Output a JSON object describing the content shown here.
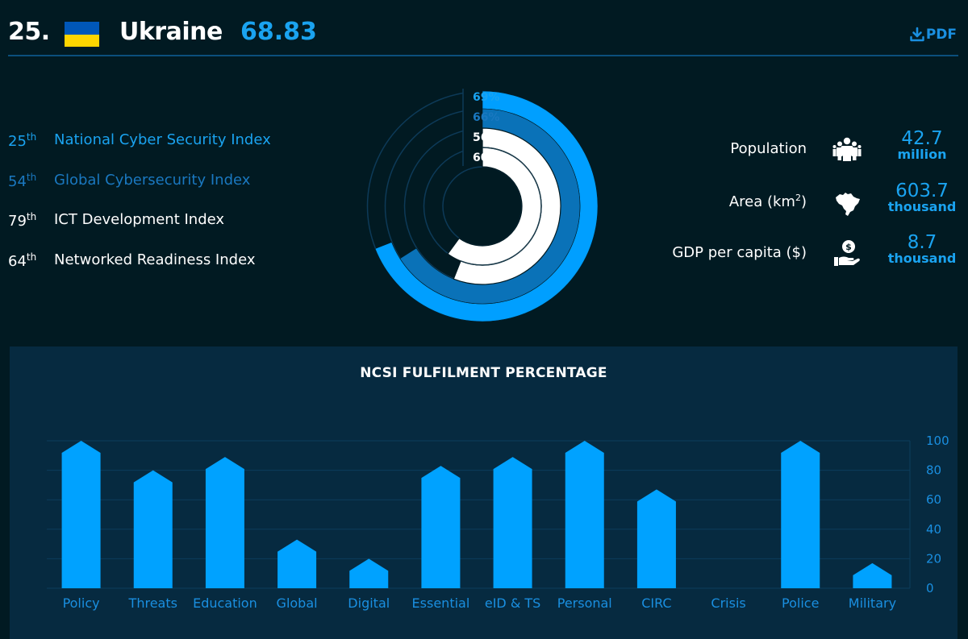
{
  "header": {
    "rank": "25.",
    "country": "Ukraine",
    "score": "68.83",
    "flag": {
      "top_color": "#0057b8",
      "bottom_color": "#ffd500"
    },
    "pdf_label": "PDF",
    "pdf_icon": "download-icon"
  },
  "indices": [
    {
      "rank": "25",
      "suffix": "th",
      "label": "National Cyber Security Index",
      "color": "#1aa3f0"
    },
    {
      "rank": "54",
      "suffix": "th",
      "label": "Global Cybersecurity Index",
      "color": "#1a78c0"
    },
    {
      "rank": "79",
      "suffix": "th",
      "label": "ICT Development Index",
      "color": "#ffffff"
    },
    {
      "rank": "64",
      "suffix": "th",
      "label": "Networked Readiness Index",
      "color": "#ffffff"
    }
  ],
  "rings": [
    {
      "label": "69%",
      "value": 69,
      "color": "#009fff",
      "label_color": "#1aa3f0"
    },
    {
      "label": "66%",
      "value": 66,
      "color": "#0a72b8",
      "label_color": "#1a78c0"
    },
    {
      "label": "56%",
      "value": 56,
      "color": "#ffffff",
      "label_color": "#ffffff"
    },
    {
      "label": "60%",
      "value": 60,
      "color": "#ffffff",
      "label_color": "#ffffff"
    }
  ],
  "stats": [
    {
      "label": "Population",
      "icon": "people-icon",
      "value": "42.7",
      "unit": "million"
    },
    {
      "label": "Area (km",
      "label_sup": "2",
      "label_end": ")",
      "icon": "map-icon",
      "value": "603.7",
      "unit": "thousand"
    },
    {
      "label": "GDP per capita ($)",
      "icon": "money-hand-icon",
      "value": "8.7",
      "unit": "thousand"
    }
  ],
  "panel": {
    "title": "NCSI FULFILMENT PERCENTAGE"
  },
  "chart_data": {
    "type": "bar",
    "title": "NCSI FULFILMENT PERCENTAGE",
    "categories": [
      "Policy",
      "Threats",
      "Education",
      "Global",
      "Digital",
      "Essential",
      "eID & TS",
      "Personal",
      "CIRC",
      "Crisis",
      "Police",
      "Military"
    ],
    "values": [
      100,
      80,
      89,
      33,
      20,
      83,
      89,
      100,
      67,
      0,
      100,
      17
    ],
    "xlabel": "",
    "ylabel": "",
    "ylim": [
      0,
      100
    ],
    "yticks": [
      0,
      20,
      40,
      60,
      80,
      100
    ],
    "y_axis_position": "right",
    "grid": true,
    "bar_color": "#00a2ff"
  }
}
